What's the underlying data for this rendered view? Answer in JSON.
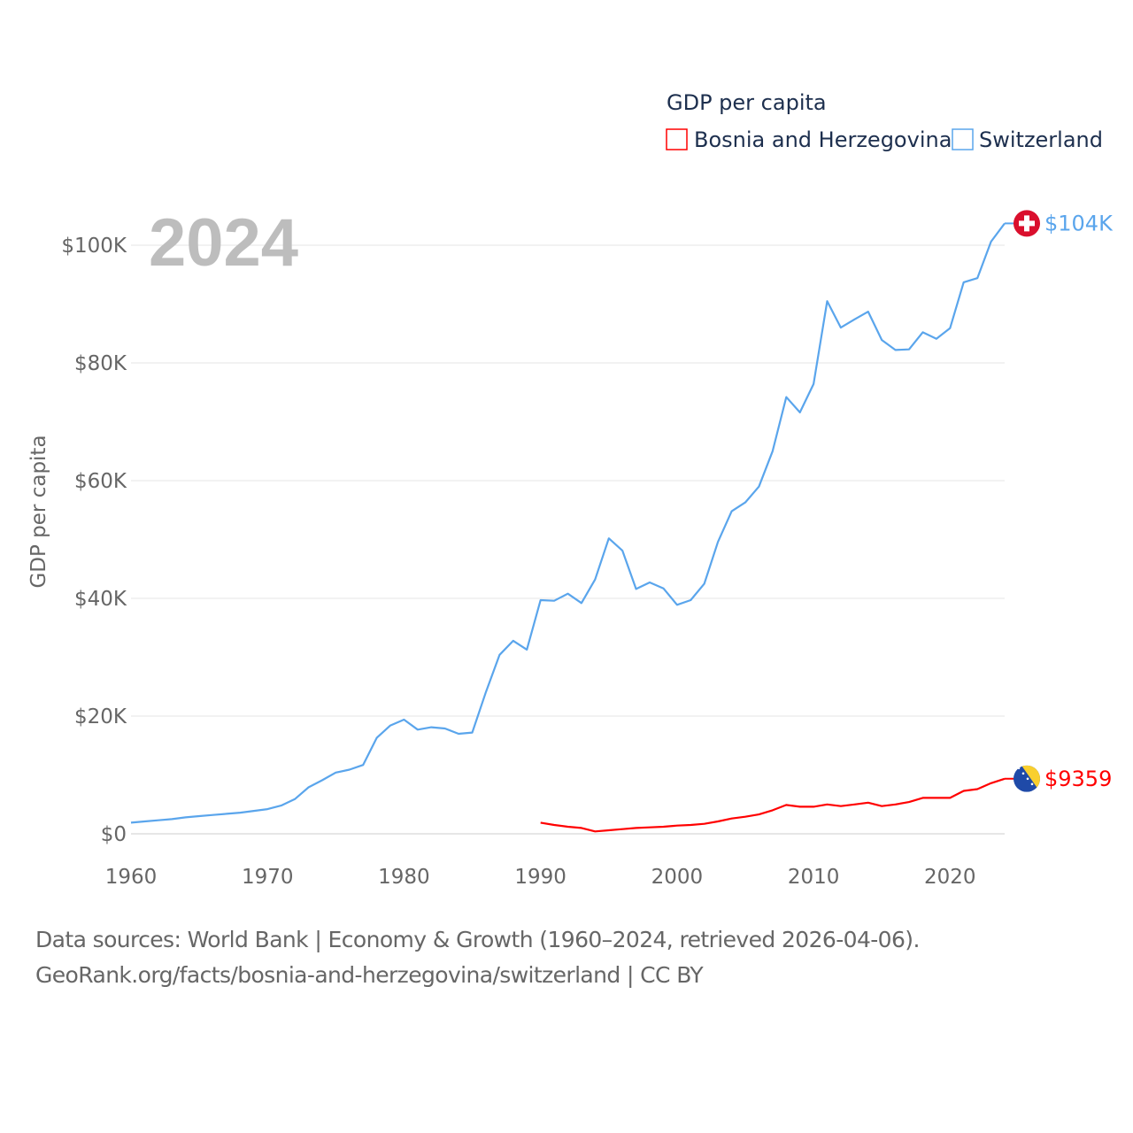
{
  "chart_data": {
    "type": "line",
    "legend_title": "GDP per capita",
    "legend_placement": "top-right",
    "ylabel": "GDP per capita",
    "xlabel": "",
    "year_label": "2024",
    "xlim": [
      1960,
      2024
    ],
    "ylim": [
      0,
      100000
    ],
    "x_ticks": [
      1960,
      1970,
      1980,
      1990,
      2000,
      2010,
      2020
    ],
    "y_ticks": [
      0,
      20000,
      40000,
      60000,
      80000,
      100000
    ],
    "y_tick_labels": [
      "$0",
      "$20K",
      "$40K",
      "$60K",
      "$80K",
      "$100K"
    ],
    "grid": true,
    "series": [
      {
        "name": "Bosnia and Herzegovina",
        "color": "#ff0000",
        "end_label": "$9359",
        "flag": "bosnia-flag",
        "x": [
          1990,
          1991,
          1992,
          1993,
          1994,
          1995,
          1996,
          1997,
          1998,
          1999,
          2000,
          2001,
          2002,
          2003,
          2004,
          2005,
          2006,
          2007,
          2008,
          2009,
          2010,
          2011,
          2012,
          2013,
          2014,
          2015,
          2016,
          2017,
          2018,
          2019,
          2020,
          2021,
          2022,
          2023,
          2024
        ],
        "values": [
          1900,
          1500,
          1200,
          1000,
          400,
          600,
          800,
          1000,
          1100,
          1200,
          1400,
          1500,
          1700,
          2100,
          2600,
          2900,
          3300,
          4000,
          4900,
          4600,
          4600,
          5000,
          4700,
          5000,
          5300,
          4700,
          5000,
          5400,
          6100,
          6100,
          6100,
          7300,
          7600,
          8600,
          9359
        ]
      },
      {
        "name": "Switzerland",
        "color": "#5aa5ec",
        "end_label": "$104K",
        "flag": "switzerland-flag",
        "x": [
          1960,
          1961,
          1962,
          1963,
          1964,
          1965,
          1966,
          1967,
          1968,
          1969,
          1970,
          1971,
          1972,
          1973,
          1974,
          1975,
          1976,
          1977,
          1978,
          1979,
          1980,
          1981,
          1982,
          1983,
          1984,
          1985,
          1986,
          1987,
          1988,
          1989,
          1990,
          1991,
          1992,
          1993,
          1994,
          1995,
          1996,
          1997,
          1998,
          1999,
          2000,
          2001,
          2002,
          2003,
          2004,
          2005,
          2006,
          2007,
          2008,
          2009,
          2010,
          2011,
          2012,
          2013,
          2014,
          2015,
          2016,
          2017,
          2018,
          2019,
          2020,
          2021,
          2022,
          2023,
          2024
        ],
        "values": [
          1900,
          2100,
          2300,
          2500,
          2800,
          3000,
          3200,
          3400,
          3600,
          3900,
          4200,
          4800,
          5900,
          7900,
          9100,
          10400,
          10900,
          11700,
          16300,
          18400,
          19400,
          17700,
          18100,
          17900,
          17000,
          17200,
          24100,
          30400,
          32800,
          31300,
          39700,
          39600,
          40800,
          39200,
          43200,
          50200,
          48100,
          41600,
          42700,
          41700,
          38900,
          39700,
          42500,
          49600,
          54800,
          56300,
          59000,
          65000,
          74200,
          71600,
          76400,
          90500,
          86000,
          87400,
          88700,
          83900,
          82200,
          82300,
          85200,
          84100,
          85900,
          93700,
          94400,
          100600,
          103700
        ]
      }
    ]
  },
  "footer": {
    "line1": "Data sources: World Bank | Economy & Growth (1960–2024, retrieved 2026-04-06).",
    "line2": "GeoRank.org/facts/bosnia-and-herzegovina/switzerland | CC BY"
  }
}
